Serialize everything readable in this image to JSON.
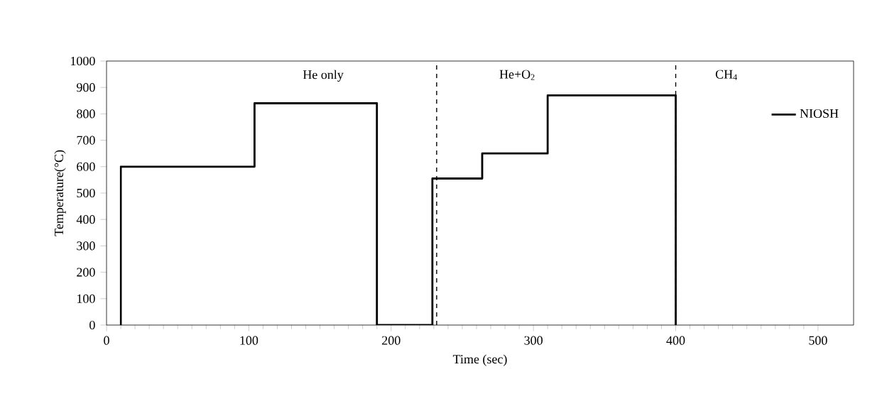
{
  "chart_data": {
    "type": "line",
    "xlabel": "Time (sec)",
    "ylabel": "Temperature(°C)",
    "x": [
      10,
      10,
      104,
      104,
      190,
      190,
      229,
      229,
      264,
      264,
      310,
      310,
      400,
      400
    ],
    "series": [
      {
        "name": "NIOSH",
        "color": "#000000",
        "values": [
          0,
          600,
          600,
          840,
          840,
          0,
          0,
          555,
          555,
          650,
          650,
          870,
          870,
          0
        ]
      }
    ],
    "xlim": [
      0,
      525
    ],
    "xticks": [
      0,
      100,
      200,
      300,
      400,
      500
    ],
    "ylim": [
      0,
      1000
    ],
    "yticks": [
      0,
      100,
      200,
      300,
      400,
      500,
      600,
      700,
      800,
      900,
      1000
    ],
    "ref_lines": [
      {
        "axis": "x",
        "value": 232,
        "line_style": "dashed",
        "color": "#000000"
      },
      {
        "axis": "x",
        "value": 400,
        "line_style": "dashed",
        "color": "#000000"
      }
    ],
    "annotations": [
      "He only",
      "He+O$_{2}$",
      "CH$_{4}$"
    ],
    "legend": "top right",
    "grid": false,
    "marker": "none",
    "line_style": "solid"
  }
}
